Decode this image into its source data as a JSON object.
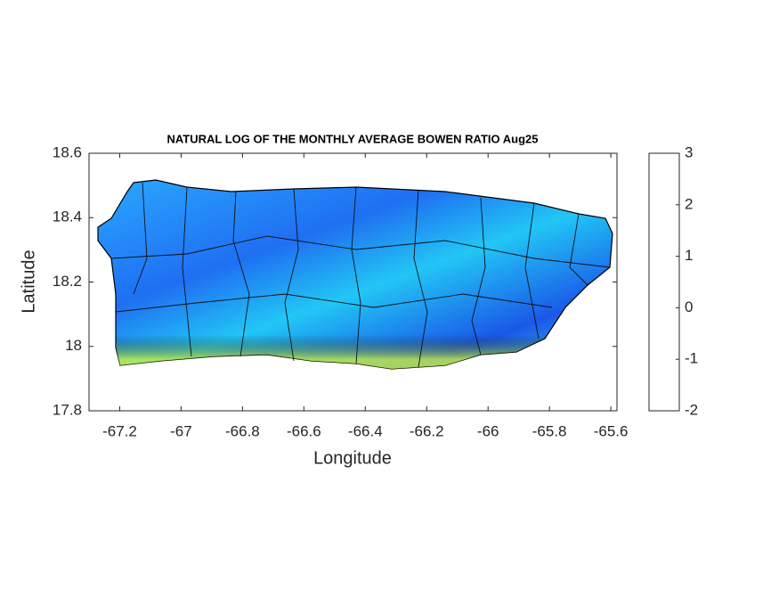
{
  "chart_data": {
    "type": "map",
    "title": "NATURAL LOG OF THE MONTHLY AVERAGE BOWEN RATIO Aug25",
    "xlabel": "Longitude",
    "ylabel": "Latitude",
    "xlim": [
      -67.3,
      -65.58
    ],
    "xticks": [
      -67.2,
      -67,
      -66.8,
      -66.6,
      -66.4,
      -66.2,
      -66,
      -65.8,
      -65.6
    ],
    "ylim": [
      17.8,
      18.6
    ],
    "yticks": [
      17.8,
      18,
      18.2,
      18.4,
      18.6
    ],
    "clim": [
      -2,
      3
    ],
    "cticks": [
      -2,
      -1,
      0,
      1,
      2,
      3
    ],
    "colormap": [
      "#00007f",
      "#0000ff",
      "#007fff",
      "#00ffff",
      "#7fff7f",
      "#ffff00",
      "#ff7f00",
      "#ff0000",
      "#7f0000"
    ]
  }
}
